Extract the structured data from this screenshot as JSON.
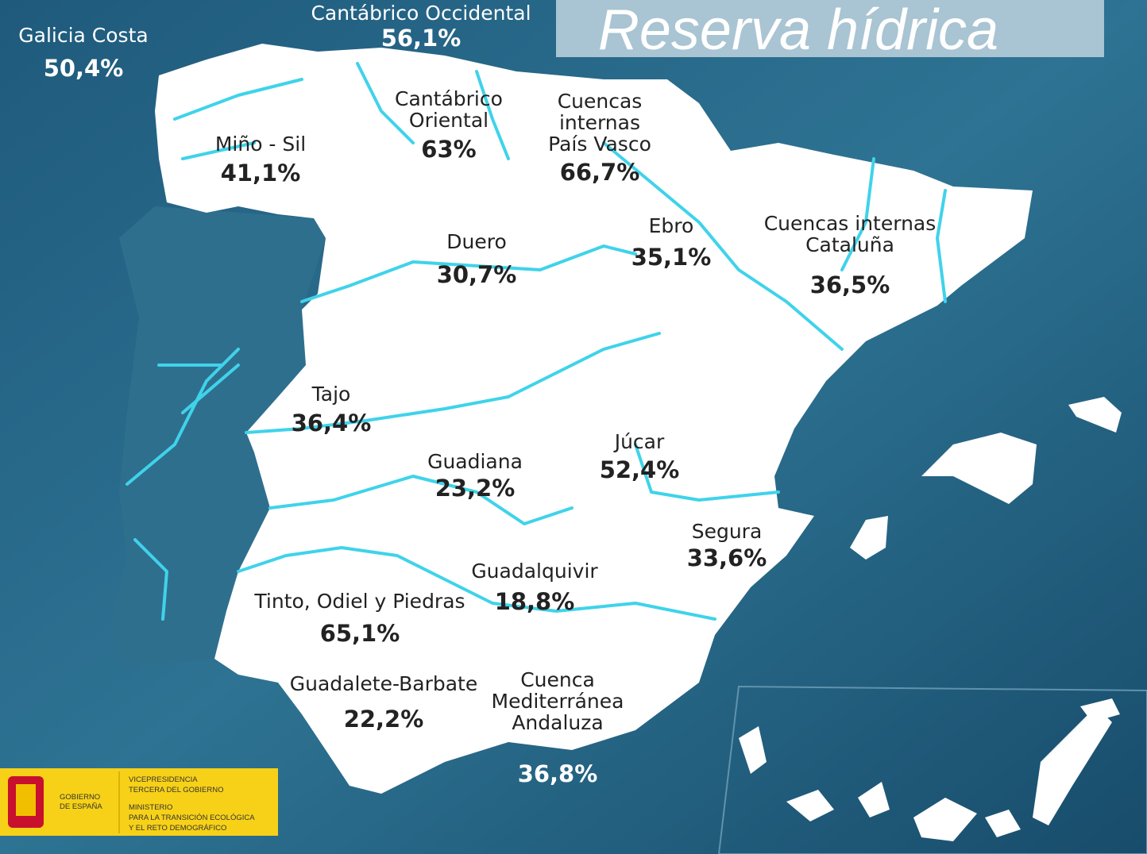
{
  "title": "Reserva hídrica",
  "basins": [
    {
      "name": [
        "Galicia Costa"
      ],
      "value": "50,4%"
    },
    {
      "name": [
        "Cantábrico Occidental"
      ],
      "value": "56,1%"
    },
    {
      "name": [
        "Miño - Sil"
      ],
      "value": "41,1%"
    },
    {
      "name": [
        "Cantábrico",
        "Oriental"
      ],
      "value": "63%"
    },
    {
      "name": [
        "Cuencas",
        "internas",
        "País Vasco"
      ],
      "value": "66,7%"
    },
    {
      "name": [
        "Ebro"
      ],
      "value": "35,1%"
    },
    {
      "name": [
        "Cuencas internas",
        "Cataluña"
      ],
      "value": "36,5%"
    },
    {
      "name": [
        "Duero"
      ],
      "value": "30,7%"
    },
    {
      "name": [
        "Tajo"
      ],
      "value": "36,4%"
    },
    {
      "name": [
        "Guadiana"
      ],
      "value": "23,2%"
    },
    {
      "name": [
        "Júcar"
      ],
      "value": "52,4%"
    },
    {
      "name": [
        "Segura"
      ],
      "value": "33,6%"
    },
    {
      "name": [
        "Guadalquivir"
      ],
      "value": "18,8%"
    },
    {
      "name": [
        "Tinto, Odiel y Piedras"
      ],
      "value": "65,1%"
    },
    {
      "name": [
        "Guadalete-Barbate"
      ],
      "value": "22,2%"
    },
    {
      "name": [
        "Cuenca",
        "Mediterránea",
        "Andaluza"
      ],
      "value": "36,8%"
    }
  ],
  "logo": {
    "government": [
      "GOBIERNO",
      "DE ESPAÑA"
    ],
    "ministry": [
      "VICEPRESIDENCIA",
      "TERCERA DEL GOBIERNO",
      "MINISTERIO",
      "PARA LA TRANSICIÓN ECOLÓGICA",
      "Y EL RETO DEMOGRÁFICO"
    ]
  }
}
